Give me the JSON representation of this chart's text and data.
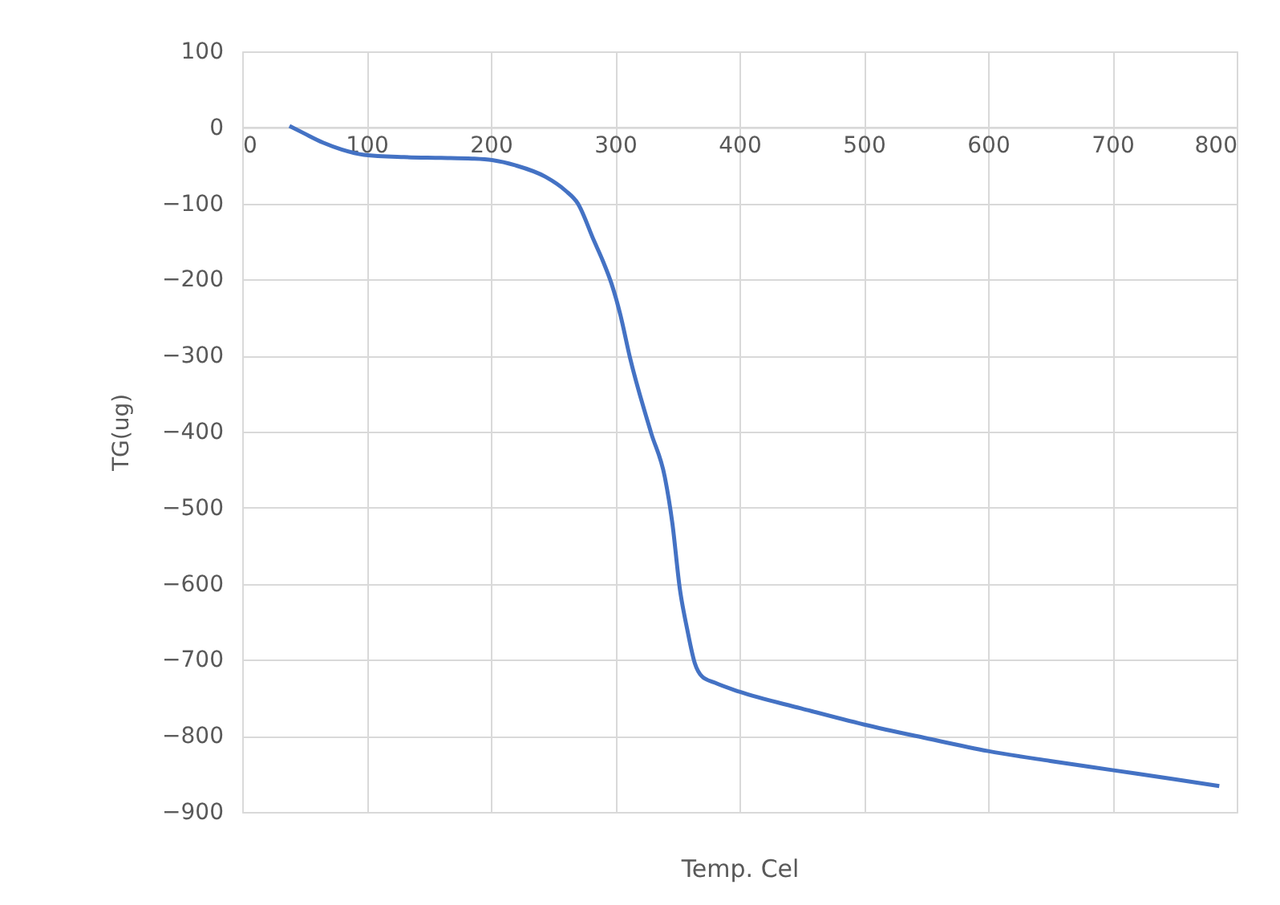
{
  "chart_data": {
    "type": "line",
    "xlabel": "Temp. Cel",
    "ylabel": "TG(ug)",
    "x": [
      38,
      50,
      65,
      80,
      98,
      130,
      160,
      185,
      201,
      220,
      244,
      260,
      270,
      283,
      290,
      297,
      304,
      312,
      329,
      340,
      346,
      352,
      358,
      364,
      370,
      380,
      400,
      450,
      500,
      550,
      600,
      650,
      700,
      750,
      786
    ],
    "series": [
      {
        "color": "#4472c4",
        "values": [
          2,
          -8,
          -20,
          -29,
          -36,
          -39,
          -40,
          -41,
          -43,
          -50,
          -65,
          -83,
          -100,
          -149,
          -175,
          -205,
          -245,
          -303,
          -402,
          -460,
          -520,
          -606,
          -660,
          -704,
          -722,
          -730,
          -742,
          -764,
          -785,
          -803,
          -820,
          -833,
          -845,
          -857,
          -866
        ]
      }
    ],
    "xlim": [
      0,
      800
    ],
    "xticks": [
      0,
      100,
      200,
      300,
      400,
      500,
      600,
      700,
      800
    ],
    "ylim": [
      -900,
      100
    ],
    "yticks": [
      100,
      0,
      -100,
      -200,
      -300,
      -400,
      -500,
      -600,
      -700,
      -800,
      -900
    ],
    "grid": true,
    "marker": "none",
    "line_style": "solid"
  }
}
